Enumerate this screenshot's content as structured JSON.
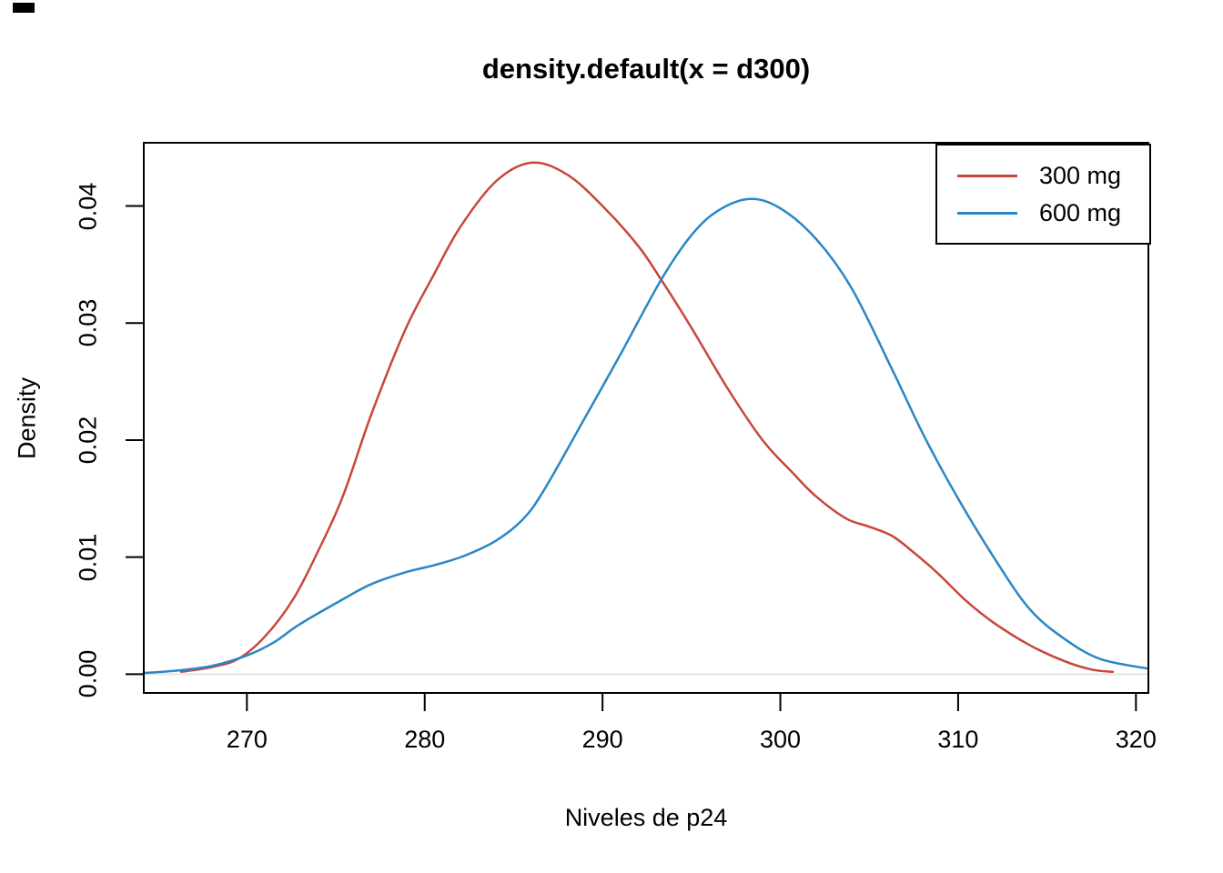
{
  "chart_data": {
    "type": "line",
    "title": "density.default(x = d300)",
    "xlabel": "Niveles de p24",
    "ylabel": "Density",
    "x_ticks": [
      "270",
      "280",
      "290",
      "300",
      "310",
      "320"
    ],
    "x_tick_values": [
      270,
      280,
      290,
      300,
      310,
      320
    ],
    "y_ticks": [
      "0.00",
      "0.01",
      "0.02",
      "0.03",
      "0.04"
    ],
    "y_tick_values": [
      0,
      0.01,
      0.02,
      0.03,
      0.04
    ],
    "xlim": [
      264.2,
      320.7
    ],
    "ylim": [
      -0.0016,
      0.0454
    ],
    "grid": false,
    "zero_line": true,
    "zero_line_color": "#e3e3e3",
    "axis_color": "#000000",
    "background_color": "#ffffff",
    "legend": {
      "position": "topright",
      "items": [
        {
          "label": "300 mg",
          "color": "#C8463C"
        },
        {
          "label": "600 mg",
          "color": "#2986C7"
        }
      ]
    },
    "series": [
      {
        "name": "300 mg",
        "color": "#C8463C",
        "points": [
          [
            266.3,
            0.0002
          ],
          [
            268.0,
            0.0006
          ],
          [
            269.5,
            0.0013
          ],
          [
            271.0,
            0.0032
          ],
          [
            272.6,
            0.0064
          ],
          [
            274.0,
            0.0105
          ],
          [
            275.4,
            0.0152
          ],
          [
            277.0,
            0.0222
          ],
          [
            278.9,
            0.0294
          ],
          [
            280.5,
            0.0341
          ],
          [
            282.0,
            0.0382
          ],
          [
            284.0,
            0.0421
          ],
          [
            286.0,
            0.0437
          ],
          [
            288.0,
            0.0427
          ],
          [
            290.0,
            0.04
          ],
          [
            292.0,
            0.0366
          ],
          [
            293.3,
            0.0337
          ],
          [
            295.0,
            0.0296
          ],
          [
            297.0,
            0.0245
          ],
          [
            299.0,
            0.02
          ],
          [
            300.7,
            0.0172
          ],
          [
            302.0,
            0.0152
          ],
          [
            303.7,
            0.0133
          ],
          [
            305.0,
            0.0126
          ],
          [
            306.3,
            0.0118
          ],
          [
            307.5,
            0.0104
          ],
          [
            308.8,
            0.0087
          ],
          [
            310.5,
            0.0062
          ],
          [
            312.0,
            0.0044
          ],
          [
            314.0,
            0.0025
          ],
          [
            316.0,
            0.0011
          ],
          [
            317.5,
            0.0004
          ],
          [
            318.7,
            0.0002
          ]
        ]
      },
      {
        "name": "600 mg",
        "color": "#2986C7",
        "points": [
          [
            264.2,
            0.0001
          ],
          [
            266.0,
            0.0003
          ],
          [
            268.0,
            0.0007
          ],
          [
            270.0,
            0.0016
          ],
          [
            271.5,
            0.0027
          ],
          [
            273.0,
            0.0043
          ],
          [
            275.4,
            0.0064
          ],
          [
            277.0,
            0.0077
          ],
          [
            278.9,
            0.0087
          ],
          [
            280.5,
            0.0093
          ],
          [
            282.2,
            0.0101
          ],
          [
            284.0,
            0.0114
          ],
          [
            285.5,
            0.0132
          ],
          [
            286.7,
            0.0157
          ],
          [
            288.9,
            0.0216
          ],
          [
            291.0,
            0.0273
          ],
          [
            293.3,
            0.0337
          ],
          [
            295.0,
            0.0375
          ],
          [
            296.5,
            0.0396
          ],
          [
            298.3,
            0.0406
          ],
          [
            300.0,
            0.0398
          ],
          [
            302.0,
            0.0372
          ],
          [
            304.0,
            0.033
          ],
          [
            306.3,
            0.026
          ],
          [
            308.1,
            0.0203
          ],
          [
            310.0,
            0.015
          ],
          [
            312.0,
            0.01
          ],
          [
            314.0,
            0.0056
          ],
          [
            316.0,
            0.003
          ],
          [
            318.0,
            0.0013
          ],
          [
            320.6,
            0.0005
          ]
        ]
      }
    ]
  }
}
